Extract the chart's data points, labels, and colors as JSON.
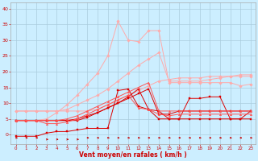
{
  "x": [
    0,
    1,
    2,
    3,
    4,
    5,
    6,
    7,
    8,
    9,
    10,
    11,
    12,
    13,
    14,
    15,
    16,
    17,
    18,
    19,
    20,
    21,
    22,
    23
  ],
  "lines": [
    {
      "color": "#ffaaaa",
      "lw": 0.7,
      "marker": "D",
      "ms": 1.8,
      "y": [
        7.5,
        7.5,
        7.5,
        7.5,
        7.5,
        7.5,
        7.5,
        7.5,
        8.0,
        9.5,
        11.0,
        12.5,
        14.0,
        15.5,
        17.0,
        17.5,
        18.0,
        18.0,
        18.0,
        18.5,
        18.5,
        18.5,
        18.5,
        18.5
      ]
    },
    {
      "color": "#ffaaaa",
      "lw": 0.7,
      "marker": "D",
      "ms": 1.8,
      "y": [
        7.5,
        7.5,
        7.5,
        7.5,
        7.5,
        8.0,
        9.5,
        11.0,
        12.5,
        14.5,
        17.0,
        19.5,
        22.0,
        24.0,
        26.0,
        17.0,
        17.0,
        17.0,
        17.0,
        17.5,
        18.0,
        18.5,
        19.0,
        19.0
      ]
    },
    {
      "color": "#ffaaaa",
      "lw": 0.7,
      "marker": "D",
      "ms": 1.8,
      "y": [
        4.5,
        4.5,
        4.5,
        5.0,
        7.0,
        9.5,
        12.5,
        16.0,
        19.5,
        25.0,
        36.0,
        30.0,
        29.5,
        33.0,
        33.0,
        16.5,
        16.5,
        16.5,
        16.5,
        16.5,
        16.5,
        16.5,
        15.5,
        16.0
      ]
    },
    {
      "color": "#dd0000",
      "lw": 0.7,
      "marker": "s",
      "ms": 1.8,
      "y": [
        4.5,
        4.5,
        4.5,
        4.5,
        4.5,
        4.5,
        5.0,
        6.0,
        7.0,
        8.5,
        10.0,
        12.0,
        14.5,
        8.0,
        7.5,
        5.0,
        5.0,
        11.5,
        11.5,
        12.0,
        12.0,
        5.0,
        5.0,
        7.5
      ]
    },
    {
      "color": "#dd0000",
      "lw": 0.7,
      "marker": "s",
      "ms": 1.8,
      "y": [
        4.5,
        4.5,
        4.5,
        4.5,
        4.5,
        4.5,
        4.5,
        5.5,
        7.0,
        8.5,
        10.0,
        11.5,
        13.0,
        14.5,
        6.5,
        6.5,
        7.5,
        7.5,
        7.5,
        7.5,
        7.5,
        7.5,
        7.5,
        7.5
      ]
    },
    {
      "color": "#dd0000",
      "lw": 0.7,
      "marker": "s",
      "ms": 1.8,
      "y": [
        -0.5,
        -0.5,
        -0.5,
        0.5,
        1.0,
        1.0,
        1.5,
        2.0,
        2.0,
        2.0,
        14.0,
        14.5,
        9.0,
        8.0,
        5.0,
        5.0,
        5.0,
        5.0,
        5.0,
        5.0,
        5.0,
        5.0,
        5.0,
        5.0
      ]
    },
    {
      "color": "#ff5555",
      "lw": 0.7,
      "marker": "^",
      "ms": 1.8,
      "y": [
        4.5,
        4.5,
        4.5,
        4.5,
        4.5,
        5.0,
        6.0,
        7.5,
        9.0,
        10.5,
        12.0,
        13.5,
        15.0,
        16.5,
        7.5,
        7.5,
        7.5,
        7.5,
        7.5,
        7.5,
        7.5,
        7.5,
        7.5,
        7.5
      ]
    },
    {
      "color": "#ff5555",
      "lw": 0.7,
      "marker": "^",
      "ms": 1.8,
      "y": [
        4.5,
        4.5,
        4.5,
        3.5,
        3.5,
        4.0,
        5.0,
        6.5,
        8.0,
        9.5,
        11.0,
        12.5,
        8.5,
        8.0,
        6.5,
        6.0,
        6.5,
        6.5,
        6.5,
        6.5,
        6.5,
        6.5,
        6.5,
        6.5
      ]
    }
  ],
  "arrows": {
    "y_data": [
      -1.0,
      -1.0,
      -1.0,
      -1.5,
      -1.5,
      -1.5,
      -1.5,
      -1.0,
      -1.0,
      -1.0,
      -1.0,
      -1.0,
      -1.0,
      -1.0,
      -1.0,
      -1.0,
      -1.0,
      -1.0,
      -1.0,
      -1.0,
      -1.0,
      -1.0,
      -1.0,
      -1.0
    ],
    "color": "#cc0000"
  },
  "xlabel": "Vent moyen/en rafales ( km/h )",
  "xlim": [
    -0.5,
    23.5
  ],
  "ylim": [
    -3,
    42
  ],
  "yticks": [
    0,
    5,
    10,
    15,
    20,
    25,
    30,
    35,
    40
  ],
  "xticks": [
    0,
    1,
    2,
    3,
    4,
    5,
    6,
    7,
    8,
    9,
    10,
    11,
    12,
    13,
    14,
    15,
    16,
    17,
    18,
    19,
    20,
    21,
    22,
    23
  ],
  "bg_color": "#cceeff",
  "grid_color": "#aaccdd",
  "tick_color": "#cc0000",
  "label_color": "#cc0000"
}
